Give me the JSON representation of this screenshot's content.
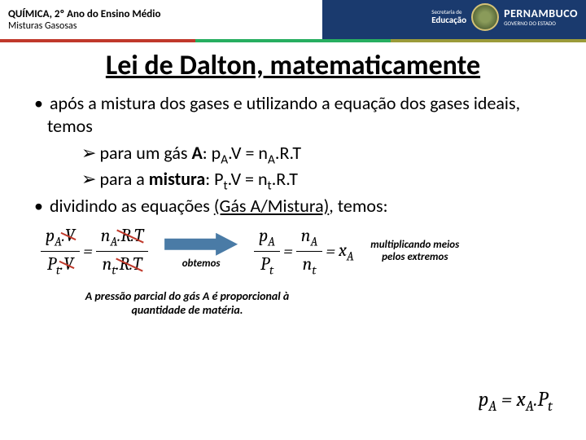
{
  "header": {
    "title": "QUÍMICA, 2º Ano do Ensino Médio",
    "subtitle": "Misturas Gasosas",
    "edu_top": "Secretaria de",
    "edu_main": "Educação",
    "state_main": "PERNAMBUCO",
    "state_sub": "GOVERNO DO ESTADO"
  },
  "title": "Lei de Dalton, matematicamente",
  "bullet1": "após a mistura dos gases e utilizando a equação dos gases ideais, temos",
  "sub1_pre": "para um gás ",
  "sub1_bold": "A",
  "sub1_eq": ": p",
  "sub1_eq2": ".V = n",
  "sub1_eq3": ".R.T",
  "sub2_pre": "para a ",
  "sub2_bold": "mistura",
  "sub2_eq": ": P",
  "sub2_eq2": ".V = n",
  "sub2_eq3": ".R.T",
  "bullet2_pre": "dividindo as equações ",
  "bullet2_paren": "(Gás A/Mistura)",
  "bullet2_post": ", temos:",
  "obtemos": "obtemos",
  "side_note": "multiplicando meios pelos extremos",
  "bottom_note": "A pressão parcial do gás A é proporcional à quantidade de matéria.",
  "eq_left": {
    "t1": "p",
    "ts1": "A",
    "t2": ".V",
    "b1": "P",
    "bs1": "t",
    "b2": ".V",
    "rt1": "n",
    "rts1": "A",
    "rt2": ".R.T",
    "rb1": "n",
    "rbs1": "t",
    "rb2": ".R.T"
  },
  "eq_mid": {
    "t1": "p",
    "ts1": "A",
    "b1": "P",
    "bs1": "t",
    "rt1": "n",
    "rts1": "A",
    "rb1": "n",
    "rbs1": "t",
    "xa": "x",
    "xas": "A"
  },
  "eq_final": {
    "p": "p",
    "ps": "A",
    "eq": " = ",
    "x": "x",
    "xs": "A",
    "dot": ".",
    "pt": "P",
    "pts": "t"
  },
  "colors": {
    "header_blue": "#1a3a6e",
    "stripe_red": "#c0392b",
    "stripe_green": "#27ae60",
    "stripe_olive": "#9b9b3a",
    "arrow_blue": "#4a7ba6",
    "strike_red": "#c0392b"
  }
}
